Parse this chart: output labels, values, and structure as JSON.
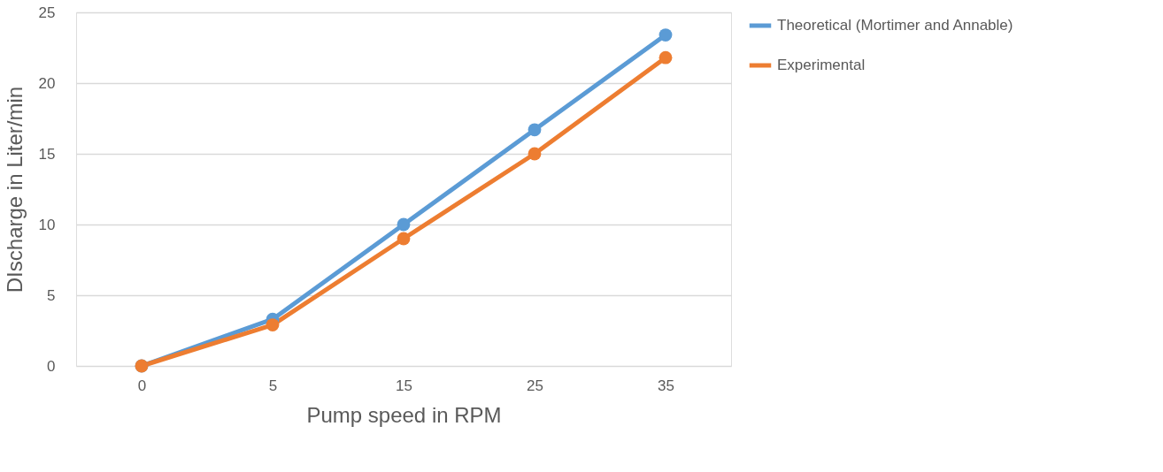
{
  "chart_data": {
    "type": "line",
    "xlabel": "Pump speed in RPM",
    "ylabel": "DIscharge in Liter/min",
    "categories": [
      "0",
      "5",
      "15",
      "25",
      "35"
    ],
    "series": [
      {
        "name": "Theoretical (Mortimer and Annable)",
        "color": "#5b9bd5",
        "values": [
          0,
          3.3,
          10.0,
          16.7,
          23.4
        ]
      },
      {
        "name": "Experimental",
        "color": "#ed7d31",
        "values": [
          0,
          2.9,
          9.0,
          15.0,
          21.8
        ]
      }
    ],
    "ylim": [
      0,
      25
    ],
    "yticks": [
      0,
      5,
      10,
      15,
      20,
      25
    ],
    "grid": "y",
    "legend": "right",
    "marker": "circle",
    "line_style": "solid"
  }
}
